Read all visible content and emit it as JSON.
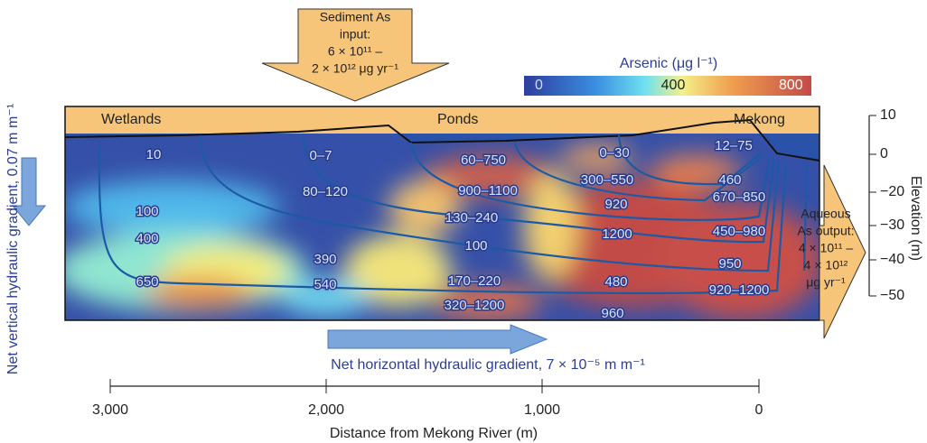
{
  "input_arrow": {
    "lines": [
      "Sediment As",
      "input:",
      "6 × 10¹¹ –",
      "2 × 10¹² μg yr⁻¹"
    ]
  },
  "colorbar": {
    "title": "Arsenic (μg l⁻¹)",
    "ticks": [
      "0",
      "400",
      "800"
    ]
  },
  "zones": [
    "Wetlands",
    "Ponds",
    "Mekong"
  ],
  "concentrations": [
    "10",
    "0–7",
    "60–750",
    "0–30",
    "12–75",
    "80–120",
    "900–1100",
    "300–550",
    "460",
    "920",
    "670–850",
    "100",
    "130–240",
    "400",
    "1200",
    "450–980",
    "100",
    "390",
    "950",
    "650",
    "540",
    "170–220",
    "480",
    "920–1200",
    "320–1200",
    "960"
  ],
  "output_arrow": {
    "lines": [
      "Aqueous",
      "As output:",
      "4 × 10¹¹ –",
      "4 × 10¹²",
      "μg yr⁻¹"
    ]
  },
  "elevation_axis": {
    "title": "Elevation (m)",
    "ticks": [
      "10",
      "0",
      "−20",
      "−30",
      "−40",
      "−50"
    ]
  },
  "distance_axis": {
    "title": "Distance from Mekong River (m)",
    "ticks": [
      "3,000",
      "2,000",
      "1,000",
      "0"
    ]
  },
  "vertical_gradient": "Net vertical hydraulic gradient, 0.07 m m⁻¹",
  "horizontal_gradient": "Net horizontal hydraulic gradient, 7 × 10⁻⁵ m m⁻¹"
}
